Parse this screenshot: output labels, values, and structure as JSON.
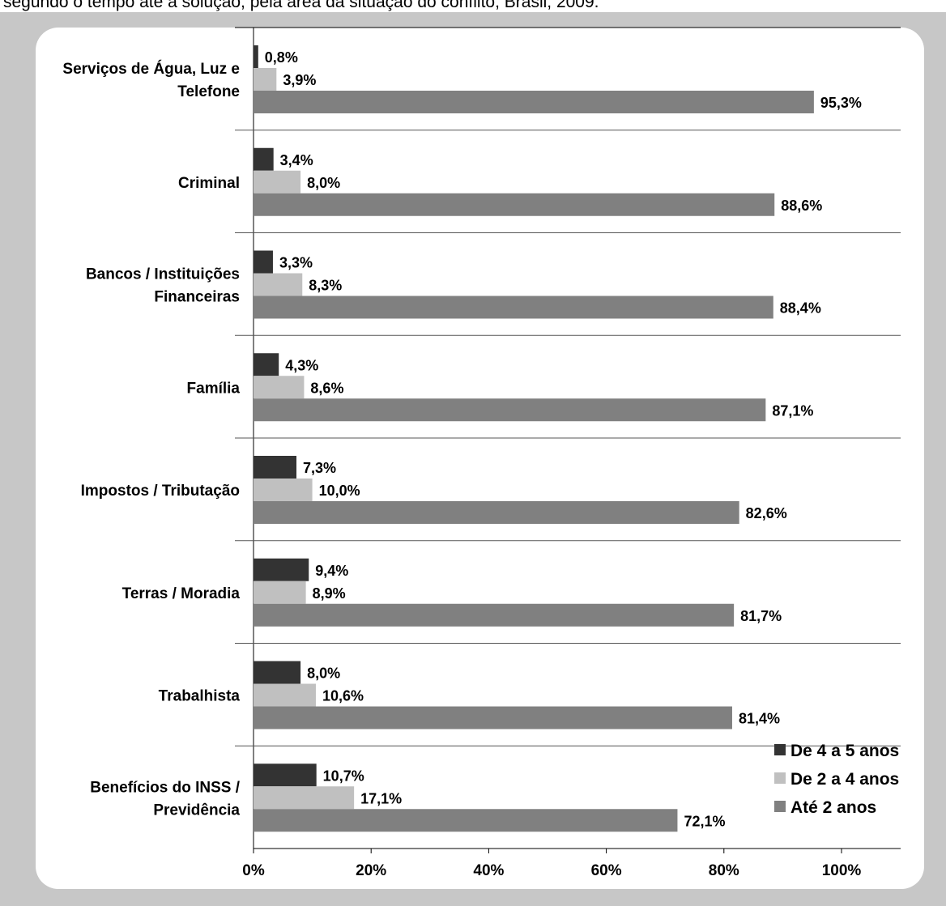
{
  "caption": "segundo o tempo até a solução, pela área da situação do conflito, Brasil, 2009.",
  "colors": {
    "background": "#c7c7c7",
    "panel": "#ffffff",
    "De 4 a 5 anos": "#333333",
    "De 2 a 4 anos": "#c0c0c0",
    "Até 2 anos": "#808080",
    "separator": "#555555"
  },
  "chart_data": {
    "type": "bar",
    "orientation": "horizontal",
    "title": "",
    "xlabel": "",
    "ylabel": "",
    "xlim": [
      0,
      100
    ],
    "x_ticks": [
      "0%",
      "20%",
      "40%",
      "60%",
      "80%",
      "100%"
    ],
    "grid": false,
    "legend_position": "bottom-right",
    "categories": [
      "Serviços de Água, Luz e Telefone",
      "Criminal",
      "Bancos / Instituições Financeiras",
      "Família",
      "Impostos / Tributação",
      "Terras / Moradia",
      "Trabalhista",
      "Benefícios do INSS / Previdência"
    ],
    "series": [
      {
        "name": "De 4 a 5 anos",
        "values": [
          0.8,
          3.4,
          3.3,
          4.3,
          7.3,
          9.4,
          8.0,
          10.7
        ],
        "labels": [
          "0,8%",
          "3,4%",
          "3,3%",
          "4,3%",
          "7,3%",
          "9,4%",
          "8,0%",
          "10,7%"
        ]
      },
      {
        "name": "De 2 a 4 anos",
        "values": [
          3.9,
          8.0,
          8.3,
          8.6,
          10.0,
          8.9,
          10.6,
          17.1
        ],
        "labels": [
          "3,9%",
          "8,0%",
          "8,3%",
          "8,6%",
          "10,0%",
          "8,9%",
          "10,6%",
          "17,1%"
        ]
      },
      {
        "name": "Até 2 anos",
        "values": [
          95.3,
          88.6,
          88.4,
          87.1,
          82.6,
          81.7,
          81.4,
          72.1
        ],
        "labels": [
          "95,3%",
          "88,6%",
          "88,4%",
          "87,1%",
          "82,6%",
          "81,7%",
          "81,4%",
          "72,1%"
        ]
      }
    ]
  }
}
